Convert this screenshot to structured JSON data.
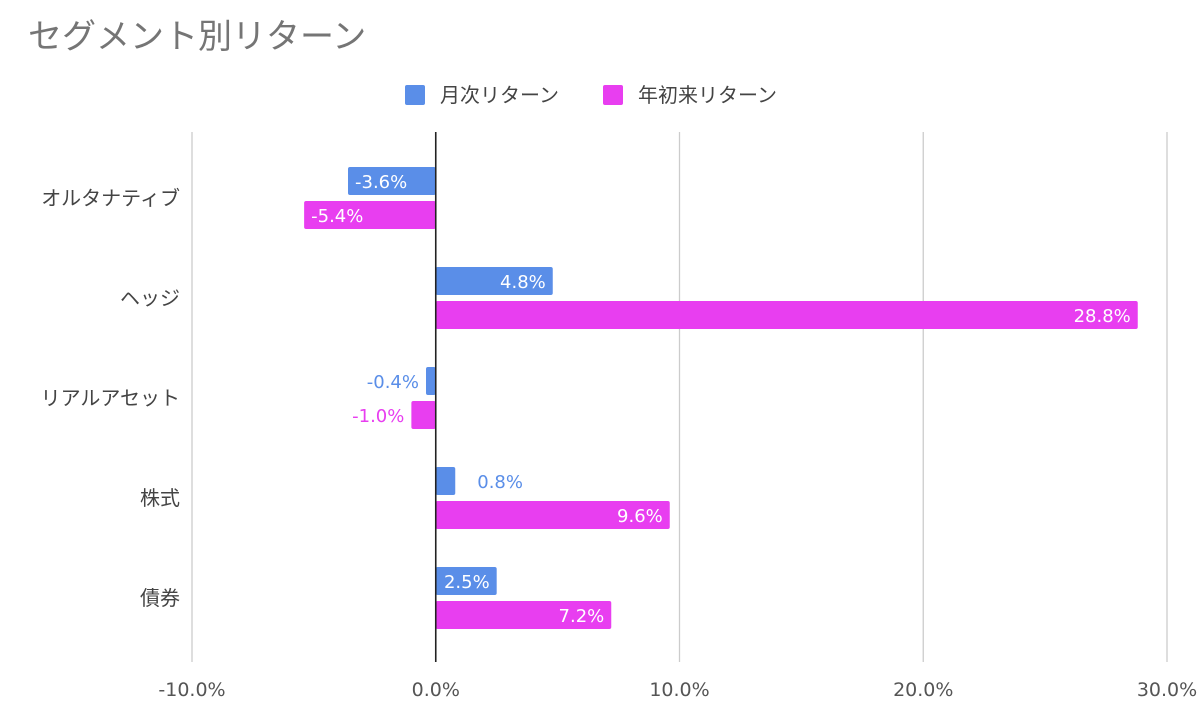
{
  "chart_data": {
    "type": "bar",
    "orientation": "horizontal",
    "title": "セグメント別リターン",
    "xlabel": "",
    "ylabel": "",
    "categories": [
      "オルタナティブ",
      "ヘッジ",
      "リアルアセット",
      "株式",
      "債券"
    ],
    "series": [
      {
        "name": "月次リターン",
        "color": "#5a8ee8",
        "values": [
          -3.6,
          4.8,
          -0.4,
          0.8,
          2.5
        ],
        "labels": [
          "-3.6%",
          "4.8%",
          "-0.4%",
          "0.8%",
          "2.5%"
        ]
      },
      {
        "name": "年初来リターン",
        "color": "#e83ef0",
        "values": [
          -5.4,
          28.8,
          -1.0,
          9.6,
          7.2
        ],
        "labels": [
          "-5.4%",
          "28.8%",
          "-1.0%",
          "9.6%",
          "7.2%"
        ]
      }
    ],
    "xlim": [
      -10,
      30
    ],
    "xticks": [
      -10,
      0,
      10,
      20,
      30
    ],
    "xtick_labels": [
      "-10.0%",
      "0.0%",
      "10.0%",
      "20.0%",
      "30.0%"
    ],
    "grid": true,
    "legend_position": "top"
  }
}
